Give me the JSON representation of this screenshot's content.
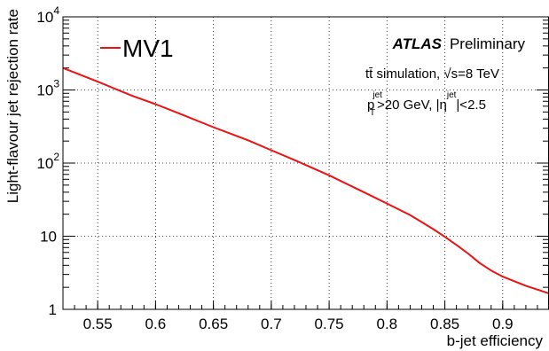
{
  "chart_data": {
    "type": "line",
    "title": "",
    "xlabel": "b-jet efficiency",
    "ylabel": "Light-flavour jet rejection rate",
    "xlim": [
      0.52,
      0.94
    ],
    "ylim": [
      1,
      10000
    ],
    "yscale": "log",
    "grid": true,
    "legend_position": "top-left",
    "x_ticks": [
      {
        "v": 0.55,
        "label": "0.55"
      },
      {
        "v": 0.6,
        "label": "0.6"
      },
      {
        "v": 0.65,
        "label": "0.65"
      },
      {
        "v": 0.7,
        "label": "0.7"
      },
      {
        "v": 0.75,
        "label": "0.75"
      },
      {
        "v": 0.8,
        "label": "0.8"
      },
      {
        "v": 0.85,
        "label": "0.85"
      },
      {
        "v": 0.9,
        "label": "0.9"
      }
    ],
    "y_ticks": [
      {
        "v": 1,
        "label": "1"
      },
      {
        "v": 10,
        "label": "10"
      },
      {
        "v": 100,
        "label": "10",
        "exp": "2"
      },
      {
        "v": 1000,
        "label": "10",
        "exp": "3"
      },
      {
        "v": 10000,
        "label": "10",
        "exp": "4"
      }
    ],
    "series": [
      {
        "name": "MV1",
        "color": "#ee1111",
        "x": [
          0.52,
          0.55,
          0.58,
          0.6,
          0.62,
          0.65,
          0.68,
          0.7,
          0.72,
          0.75,
          0.78,
          0.8,
          0.82,
          0.84,
          0.85,
          0.86,
          0.87,
          0.88,
          0.89,
          0.9,
          0.92,
          0.94
        ],
        "y": [
          2000,
          1300,
          830,
          640,
          480,
          310,
          205,
          150,
          110,
          68,
          40,
          28,
          19.5,
          12.5,
          9.8,
          7.6,
          5.8,
          4.3,
          3.4,
          2.8,
          2.1,
          1.65
        ]
      }
    ],
    "annotations": {
      "experiment": "ATLAS",
      "status": "Preliminary",
      "sample": "tt̄ simulation, √s=8 TeV",
      "cut_pt_prefix": "p",
      "cut_pt_sub": "T",
      "cut_pt_sup": "jet",
      "cut_pt_rest": ">20 GeV, |η",
      "cut_eta_sup": "jet",
      "cut_eta_rest": "|<2.5"
    }
  }
}
